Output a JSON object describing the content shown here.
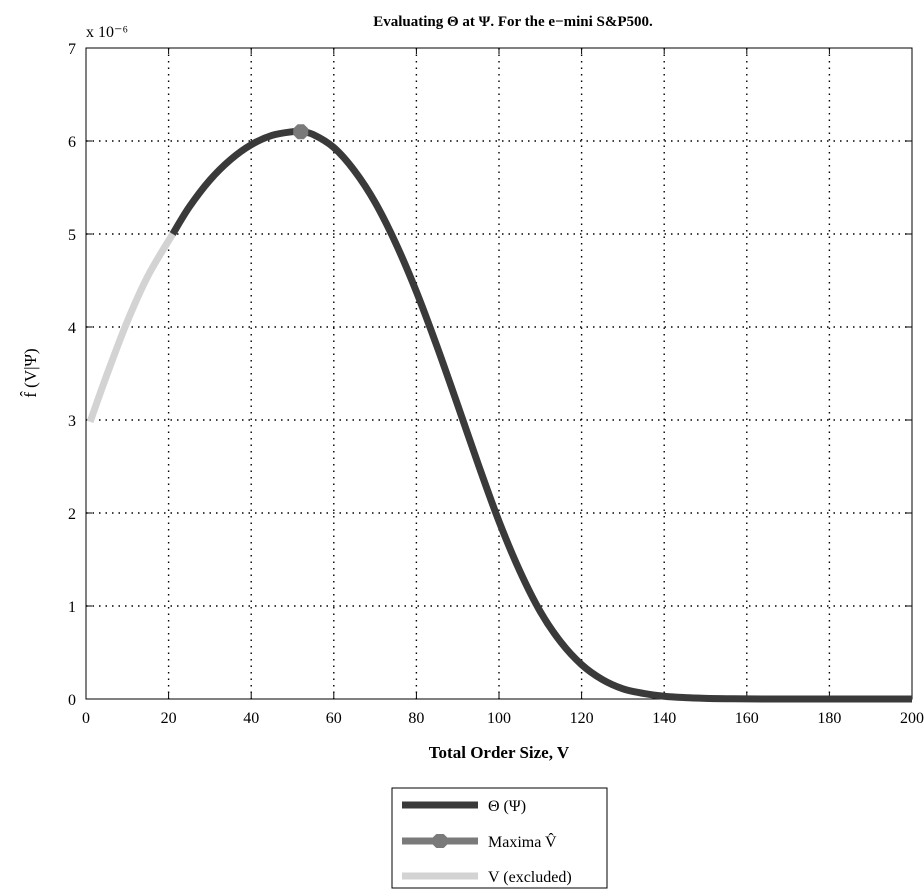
{
  "chart_data": {
    "type": "line",
    "title": "Evaluating Θ at Ψ. For the e−mini S&P500.",
    "xlabel": "Total Order Size, V",
    "ylabel": "f̂ (V|Ψ)",
    "y_exponent_label": "x 10⁻⁶",
    "xlim": [
      0,
      200
    ],
    "ylim": [
      0,
      7
    ],
    "x_ticks": [
      "0",
      "20",
      "40",
      "60",
      "80",
      "100",
      "120",
      "140",
      "160",
      "180",
      "200"
    ],
    "y_ticks": [
      "0",
      "1",
      "2",
      "3",
      "4",
      "5",
      "6",
      "7"
    ],
    "grid": true,
    "legend_position": "bottom-center",
    "series": [
      {
        "name": "Θ (Ψ)",
        "color": "#3a3a3a",
        "x": [
          21,
          25,
          30,
          35,
          40,
          45,
          50,
          52,
          55,
          60,
          65,
          70,
          75,
          80,
          85,
          90,
          95,
          100,
          105,
          110,
          115,
          120,
          125,
          130,
          135,
          140,
          145,
          150,
          155,
          160,
          170,
          180,
          190,
          200
        ],
        "y": [
          5.0,
          5.29,
          5.58,
          5.8,
          5.96,
          6.06,
          6.1,
          6.1,
          6.07,
          5.93,
          5.68,
          5.34,
          4.9,
          4.38,
          3.79,
          3.16,
          2.52,
          1.91,
          1.38,
          0.94,
          0.61,
          0.37,
          0.21,
          0.11,
          0.06,
          0.03,
          0.015,
          0.007,
          0.003,
          0.001,
          0.0003,
          0.0001,
          0.0,
          0.0
        ]
      },
      {
        "name": "Maxima V̂",
        "color": "#7a7a7a",
        "x": [
          52
        ],
        "y": [
          6.1
        ]
      },
      {
        "name": "V (excluded)",
        "color": "#d3d3d3",
        "x": [
          1,
          5,
          10,
          15,
          21
        ],
        "y": [
          2.98,
          3.48,
          4.06,
          4.55,
          5.0
        ]
      }
    ]
  },
  "legend": {
    "items": [
      {
        "label": "Θ (Ψ)",
        "color": "#3a3a3a",
        "marker": "none"
      },
      {
        "label": "Maxima V̂",
        "color": "#7a7a7a",
        "marker": "octagon"
      },
      {
        "label": "V (excluded)",
        "color": "#d3d3d3",
        "marker": "none"
      }
    ]
  }
}
